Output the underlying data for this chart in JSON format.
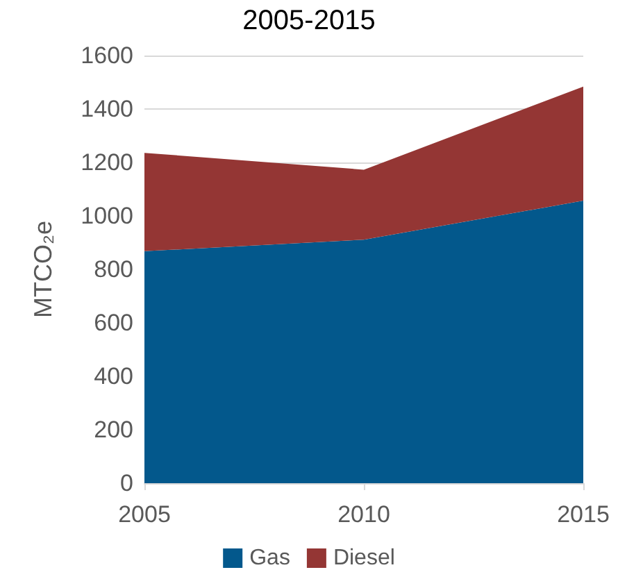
{
  "chart_data": {
    "type": "area",
    "title": "2005-2015",
    "ylabel": "MTCO₂e",
    "categories": [
      "2005",
      "2010",
      "2015"
    ],
    "stacked": true,
    "series": [
      {
        "name": "Gas",
        "color": "#03588c",
        "values": [
          868,
          911,
          1057
        ]
      },
      {
        "name": "Diesel",
        "color": "#943634",
        "values": [
          368,
          262,
          427
        ]
      }
    ],
    "ylim": [
      0,
      1600
    ],
    "yticks": [
      0,
      200,
      400,
      600,
      800,
      1000,
      1200,
      1400,
      1600
    ],
    "grid": "y",
    "legend": "bottom"
  }
}
